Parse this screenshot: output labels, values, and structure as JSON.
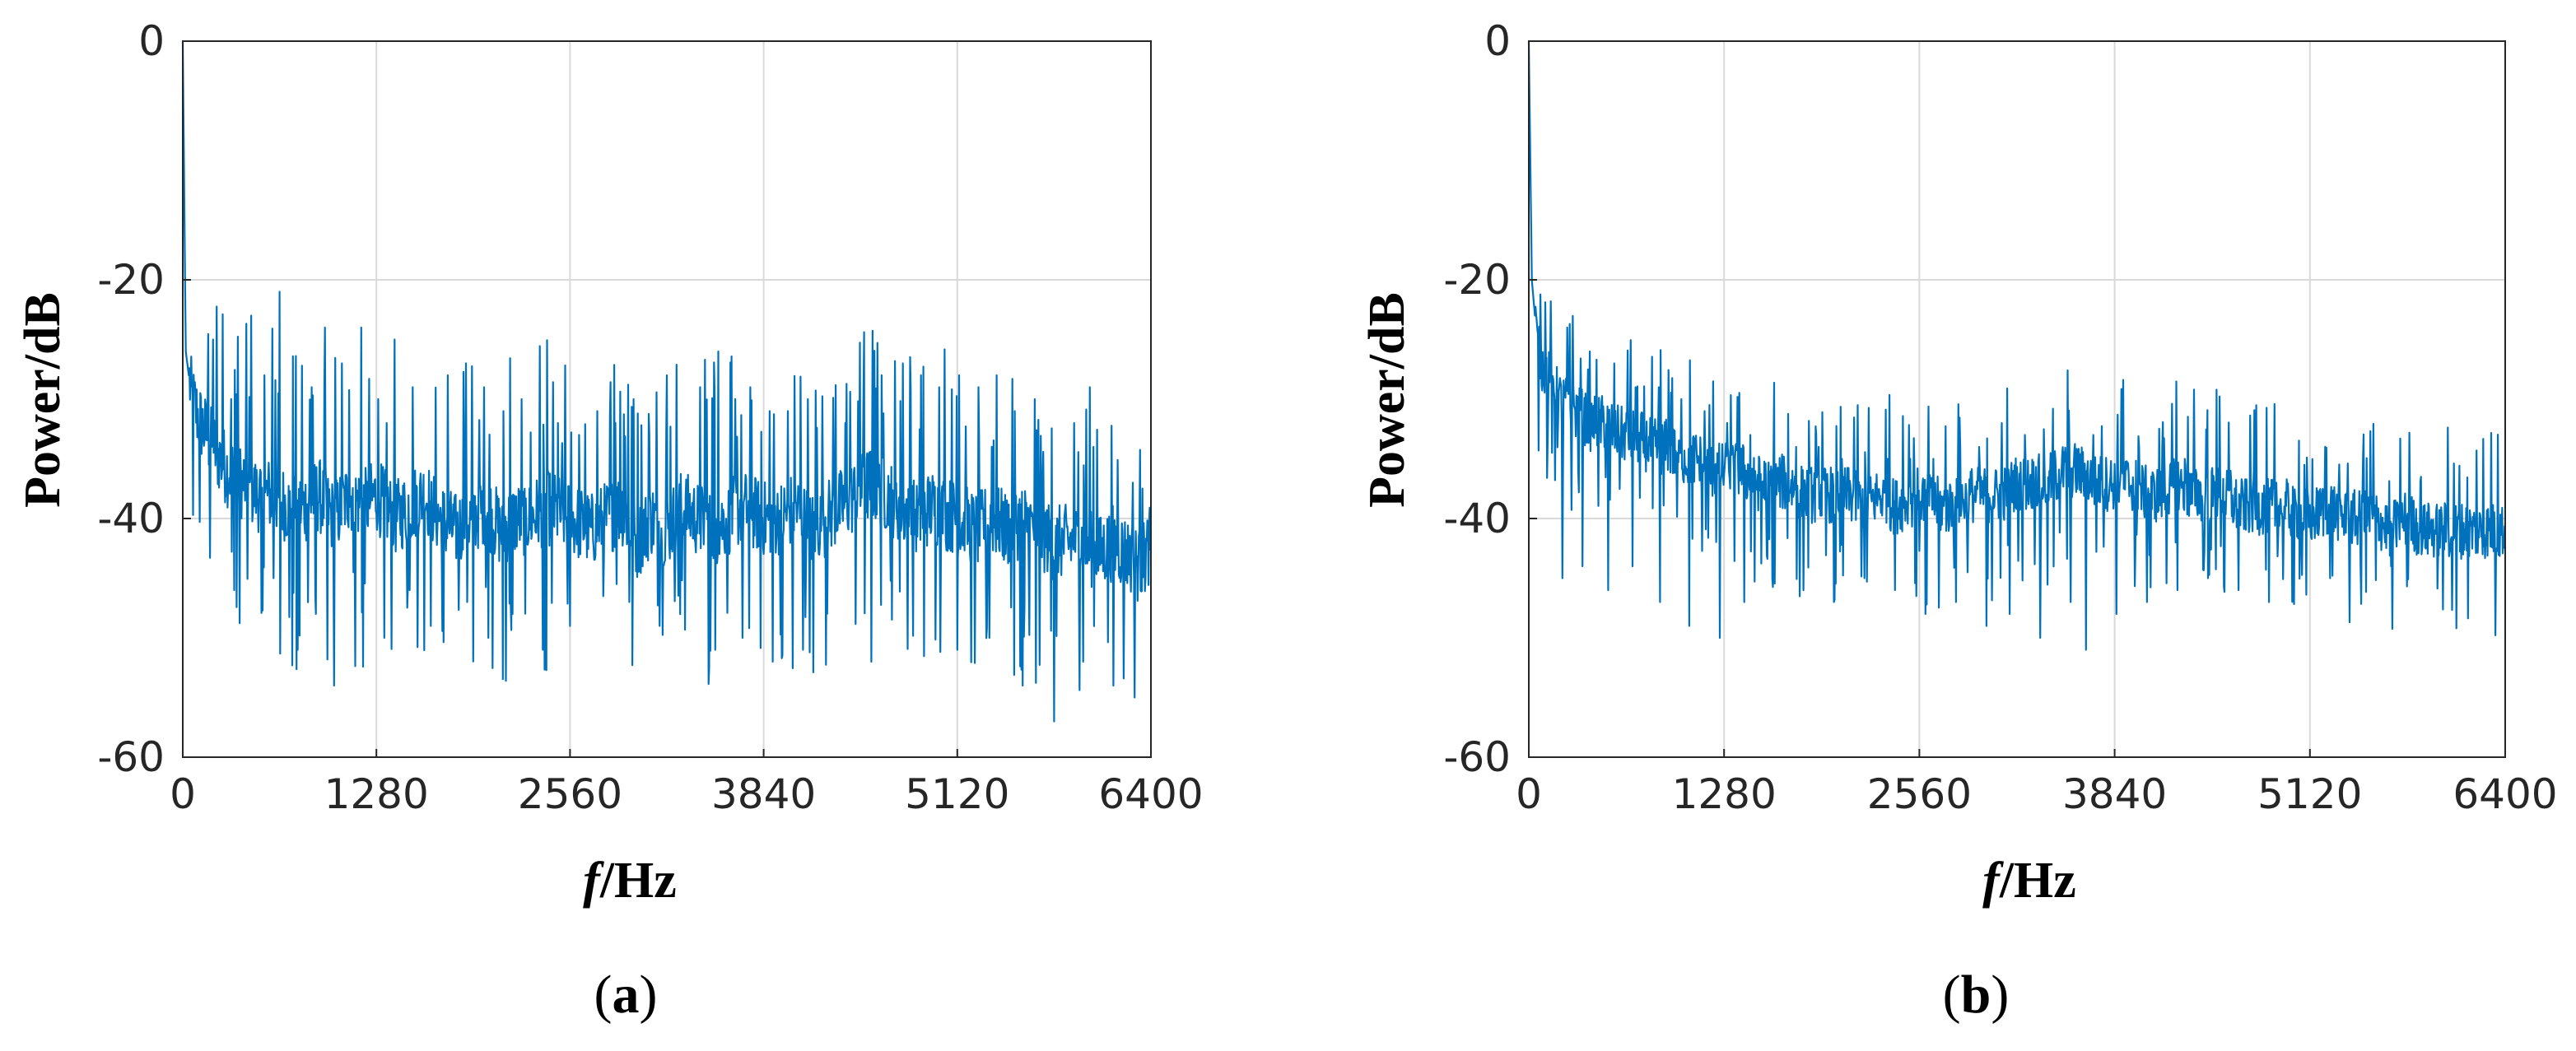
{
  "chart_data": [
    {
      "type": "line",
      "panel_label": "a",
      "xlabel_italic": "f",
      "xlabel_rest": "/Hz",
      "ylabel": "Power/dB",
      "xlim": [
        0,
        6400
      ],
      "ylim": [
        -60,
        0
      ],
      "xticks": [
        "0",
        "1280",
        "2560",
        "3840",
        "5120",
        "6400"
      ],
      "yticks": [
        "0",
        "-20",
        "-40",
        "-60"
      ],
      "grid": true,
      "color": "#0072BD",
      "series": [
        {
          "x": [
            0,
            20,
            60,
            120,
            200,
            300,
            400,
            500,
            600,
            700,
            800,
            900,
            1000,
            1100,
            1200,
            1280,
            1400,
            1500,
            1600,
            1700,
            1800,
            1900,
            2000,
            2100,
            2200,
            2300,
            2400,
            2560,
            2700,
            2800,
            2900,
            3000,
            3100,
            3200,
            3300,
            3400,
            3500,
            3600,
            3700,
            3840,
            3950,
            4050,
            4150,
            4250,
            4350,
            4450,
            4550,
            4650,
            4750,
            4850,
            4950,
            5120,
            5250,
            5350,
            5450,
            5550,
            5650,
            5750,
            5850,
            5950,
            6050,
            6150,
            6250,
            6330,
            6400
          ],
          "y": [
            0,
            -26,
            -30,
            -32,
            -34,
            -36,
            -37,
            -38,
            -38,
            -39,
            -39,
            -38,
            -40,
            -38,
            -39,
            -38,
            -40,
            -39,
            -38,
            -40,
            -41,
            -40,
            -39,
            -41,
            -40,
            -40,
            -39,
            -40,
            -41,
            -40,
            -39,
            -42,
            -40,
            -41,
            -39,
            -40,
            -41,
            -40,
            -39,
            -40,
            -40,
            -39,
            -41,
            -40,
            -39,
            -38,
            -37,
            -38,
            -39,
            -40,
            -39,
            -40,
            -41,
            -40,
            -41,
            -40,
            -41,
            -42,
            -42,
            -42,
            -43,
            -42,
            -43,
            -44,
            -42
          ],
          "peaks": [
            {
              "x": 200,
              "y": -25
            },
            {
              "x": 320,
              "y": -30
            },
            {
              "x": 450,
              "y": -23
            },
            {
              "x": 540,
              "y": -28
            },
            {
              "x": 640,
              "y": -21
            },
            {
              "x": 760,
              "y": -26
            },
            {
              "x": 850,
              "y": -29
            },
            {
              "x": 940,
              "y": -24
            },
            {
              "x": 1050,
              "y": -27
            },
            {
              "x": 1180,
              "y": -24
            },
            {
              "x": 1290,
              "y": -30
            },
            {
              "x": 1400,
              "y": -25
            },
            {
              "x": 1520,
              "y": -29
            },
            {
              "x": 1640,
              "y": -26
            },
            {
              "x": 1750,
              "y": -28
            },
            {
              "x": 1870,
              "y": -27
            },
            {
              "x": 1990,
              "y": -29
            },
            {
              "x": 2120,
              "y": -31
            },
            {
              "x": 2240,
              "y": -30
            },
            {
              "x": 2360,
              "y": -31
            },
            {
              "x": 2480,
              "y": -32
            },
            {
              "x": 2620,
              "y": -33
            },
            {
              "x": 2740,
              "y": -31
            },
            {
              "x": 2860,
              "y": -32
            },
            {
              "x": 2980,
              "y": -30
            },
            {
              "x": 3080,
              "y": -29
            },
            {
              "x": 3200,
              "y": -28
            },
            {
              "x": 3320,
              "y": -29
            },
            {
              "x": 3420,
              "y": -29
            },
            {
              "x": 3540,
              "y": -26
            },
            {
              "x": 3650,
              "y": -30
            },
            {
              "x": 3750,
              "y": -29
            },
            {
              "x": 3880,
              "y": -31
            },
            {
              "x": 4000,
              "y": -31
            },
            {
              "x": 4130,
              "y": -30
            },
            {
              "x": 4250,
              "y": -30
            },
            {
              "x": 4380,
              "y": -32
            },
            {
              "x": 4500,
              "y": -29
            },
            {
              "x": 4620,
              "y": -28
            },
            {
              "x": 4760,
              "y": -27
            },
            {
              "x": 4880,
              "y": -28
            },
            {
              "x": 5000,
              "y": -29
            },
            {
              "x": 5130,
              "y": -28
            },
            {
              "x": 5260,
              "y": -29
            },
            {
              "x": 5380,
              "y": -28
            },
            {
              "x": 5500,
              "y": -31
            },
            {
              "x": 5630,
              "y": -30
            },
            {
              "x": 5760,
              "y": -32
            },
            {
              "x": 5890,
              "y": -32
            },
            {
              "x": 6020,
              "y": -34
            },
            {
              "x": 6150,
              "y": -35
            },
            {
              "x": 6280,
              "y": -37
            }
          ],
          "dips": [
            {
              "x": 340,
              "y": -46
            },
            {
              "x": 600,
              "y": -45
            },
            {
              "x": 760,
              "y": -51
            },
            {
              "x": 880,
              "y": -48
            },
            {
              "x": 1000,
              "y": -54
            },
            {
              "x": 1140,
              "y": -50
            },
            {
              "x": 1330,
              "y": -50
            },
            {
              "x": 1500,
              "y": -46
            },
            {
              "x": 1640,
              "y": -49
            },
            {
              "x": 1880,
              "y": -47
            },
            {
              "x": 2020,
              "y": -50
            },
            {
              "x": 2180,
              "y": -48
            },
            {
              "x": 2380,
              "y": -51
            },
            {
              "x": 2560,
              "y": -49
            },
            {
              "x": 2780,
              "y": -52
            },
            {
              "x": 2950,
              "y": -47
            },
            {
              "x": 3150,
              "y": -49
            },
            {
              "x": 3300,
              "y": -53
            },
            {
              "x": 3520,
              "y": -51
            },
            {
              "x": 3700,
              "y": -50
            },
            {
              "x": 3900,
              "y": -52
            },
            {
              "x": 4100,
              "y": -51
            },
            {
              "x": 4300,
              "y": -48
            },
            {
              "x": 4550,
              "y": -52
            },
            {
              "x": 4740,
              "y": -55
            },
            {
              "x": 4900,
              "y": -52
            },
            {
              "x": 5120,
              "y": -51
            },
            {
              "x": 5330,
              "y": -50
            },
            {
              "x": 5550,
              "y": -54
            },
            {
              "x": 5760,
              "y": -57
            },
            {
              "x": 5950,
              "y": -52
            },
            {
              "x": 6150,
              "y": -54
            },
            {
              "x": 6290,
              "y": -55
            }
          ]
        }
      ]
    },
    {
      "type": "line",
      "panel_label": "b",
      "xlabel_italic": "f",
      "xlabel_rest": "/Hz",
      "ylabel": "Power/dB",
      "xlim": [
        0,
        6400
      ],
      "ylim": [
        -60,
        0
      ],
      "xticks": [
        "0",
        "1280",
        "2560",
        "3840",
        "5120",
        "6400"
      ],
      "yticks": [
        "0",
        "-20",
        "-40",
        "-60"
      ],
      "grid": true,
      "color": "#0072BD",
      "series": [
        {
          "x": [
            0,
            20,
            60,
            120,
            200,
            300,
            400,
            500,
            600,
            700,
            800,
            900,
            1000,
            1100,
            1200,
            1280,
            1400,
            1500,
            1600,
            1700,
            1800,
            1900,
            2000,
            2100,
            2200,
            2300,
            2400,
            2560,
            2700,
            2800,
            2900,
            3000,
            3100,
            3200,
            3300,
            3400,
            3500,
            3600,
            3700,
            3840,
            3950,
            4050,
            4150,
            4250,
            4350,
            4450,
            4550,
            4650,
            4750,
            4850,
            4950,
            5120,
            5250,
            5350,
            5450,
            5550,
            5650,
            5750,
            5850,
            5950,
            6050,
            6150,
            6250,
            6330,
            6400
          ],
          "y": [
            0,
            -20,
            -26,
            -28,
            -30,
            -31,
            -32,
            -32,
            -33,
            -33,
            -34,
            -34,
            -35,
            -35,
            -36,
            -36,
            -36,
            -37,
            -37,
            -37,
            -38,
            -38,
            -38,
            -38,
            -39,
            -38,
            -39,
            -38,
            -39,
            -39,
            -38,
            -38,
            -38,
            -37,
            -37,
            -37,
            -36,
            -36,
            -37,
            -37,
            -37,
            -38,
            -38,
            -37,
            -38,
            -38,
            -38,
            -39,
            -39,
            -39,
            -39,
            -40,
            -39,
            -40,
            -40,
            -40,
            -41,
            -40,
            -41,
            -41,
            -41,
            -41,
            -41,
            -41,
            -41
          ],
          "peaks": [
            {
              "x": 120,
              "y": -20
            },
            {
              "x": 250,
              "y": -24
            },
            {
              "x": 400,
              "y": -26
            },
            {
              "x": 560,
              "y": -27
            },
            {
              "x": 700,
              "y": -29
            },
            {
              "x": 850,
              "y": -29
            },
            {
              "x": 1000,
              "y": -30
            },
            {
              "x": 1150,
              "y": -31
            },
            {
              "x": 1300,
              "y": -32
            },
            {
              "x": 1450,
              "y": -33
            },
            {
              "x": 1600,
              "y": -33
            },
            {
              "x": 1750,
              "y": -34
            },
            {
              "x": 1900,
              "y": -34
            },
            {
              "x": 2050,
              "y": -35
            },
            {
              "x": 2200,
              "y": -35
            },
            {
              "x": 2350,
              "y": -35
            },
            {
              "x": 2500,
              "y": -35
            },
            {
              "x": 2650,
              "y": -35
            },
            {
              "x": 2800,
              "y": -35
            },
            {
              "x": 2950,
              "y": -34
            },
            {
              "x": 3100,
              "y": -32
            },
            {
              "x": 3250,
              "y": -33
            },
            {
              "x": 3400,
              "y": -33
            },
            {
              "x": 3550,
              "y": -33
            },
            {
              "x": 3700,
              "y": -33
            },
            {
              "x": 3850,
              "y": -33
            },
            {
              "x": 4000,
              "y": -34
            },
            {
              "x": 4150,
              "y": -34
            },
            {
              "x": 4300,
              "y": -35
            },
            {
              "x": 4450,
              "y": -35
            },
            {
              "x": 4600,
              "y": -36
            },
            {
              "x": 4750,
              "y": -36
            },
            {
              "x": 4900,
              "y": -37
            },
            {
              "x": 5050,
              "y": -37
            },
            {
              "x": 5200,
              "y": -38
            },
            {
              "x": 5350,
              "y": -38
            },
            {
              "x": 5500,
              "y": -39
            },
            {
              "x": 5700,
              "y": -39
            },
            {
              "x": 5900,
              "y": -39
            },
            {
              "x": 6100,
              "y": -40
            },
            {
              "x": 6300,
              "y": -40
            }
          ],
          "dips": [
            {
              "x": 220,
              "y": -45
            },
            {
              "x": 350,
              "y": -44
            },
            {
              "x": 520,
              "y": -46
            },
            {
              "x": 680,
              "y": -44
            },
            {
              "x": 860,
              "y": -47
            },
            {
              "x": 1050,
              "y": -49
            },
            {
              "x": 1250,
              "y": -50
            },
            {
              "x": 1410,
              "y": -47
            },
            {
              "x": 1600,
              "y": -51
            },
            {
              "x": 1800,
              "y": -46
            },
            {
              "x": 2000,
              "y": -47
            },
            {
              "x": 2200,
              "y": -45
            },
            {
              "x": 2400,
              "y": -46
            },
            {
              "x": 2600,
              "y": -48
            },
            {
              "x": 2800,
              "y": -47
            },
            {
              "x": 3000,
              "y": -49
            },
            {
              "x": 3150,
              "y": -48
            },
            {
              "x": 3350,
              "y": -50
            },
            {
              "x": 3550,
              "y": -47
            },
            {
              "x": 3650,
              "y": -51
            },
            {
              "x": 3850,
              "y": -48
            },
            {
              "x": 4050,
              "y": -47
            },
            {
              "x": 4250,
              "y": -46
            },
            {
              "x": 4450,
              "y": -45
            },
            {
              "x": 4650,
              "y": -46
            },
            {
              "x": 4850,
              "y": -47
            },
            {
              "x": 5050,
              "y": -46
            },
            {
              "x": 5250,
              "y": -45
            },
            {
              "x": 5450,
              "y": -44
            },
            {
              "x": 5650,
              "y": -44
            },
            {
              "x": 5850,
              "y": -43
            },
            {
              "x": 6050,
              "y": -43
            },
            {
              "x": 6250,
              "y": -43
            }
          ]
        }
      ]
    }
  ]
}
